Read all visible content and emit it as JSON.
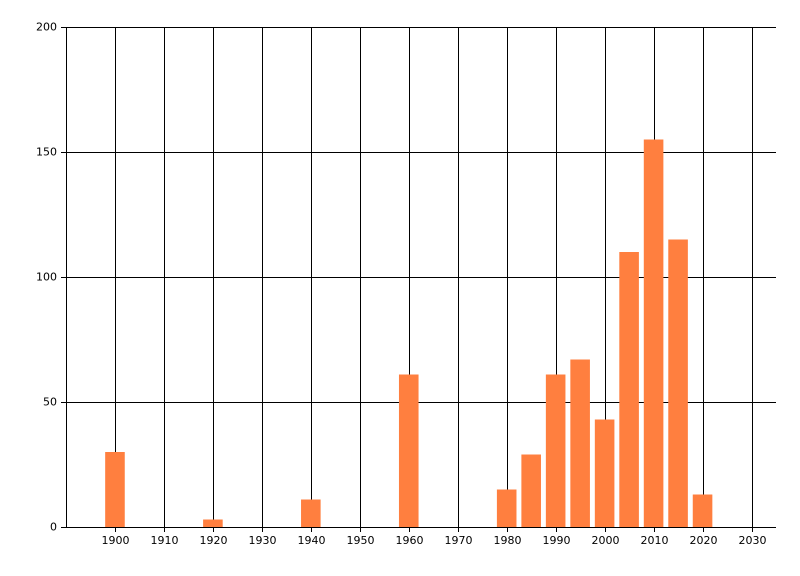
{
  "chart_data": {
    "type": "bar",
    "x": [
      1900,
      1920,
      1940,
      1960,
      1980,
      1985,
      1990,
      1995,
      2000,
      2005,
      2010,
      2015,
      2020
    ],
    "values": [
      30,
      3,
      11,
      61,
      15,
      29,
      61,
      67,
      43,
      110,
      155,
      115,
      13
    ],
    "color": "#ff7f3f",
    "xlim": [
      1890,
      2035
    ],
    "xticks": [
      1900,
      1910,
      1920,
      1930,
      1940,
      1950,
      1960,
      1970,
      1980,
      1990,
      2000,
      2010,
      2020,
      2030
    ],
    "ylim": [
      0,
      200
    ],
    "yticks": [
      0,
      50,
      100,
      150,
      200
    ],
    "grid": true
  }
}
